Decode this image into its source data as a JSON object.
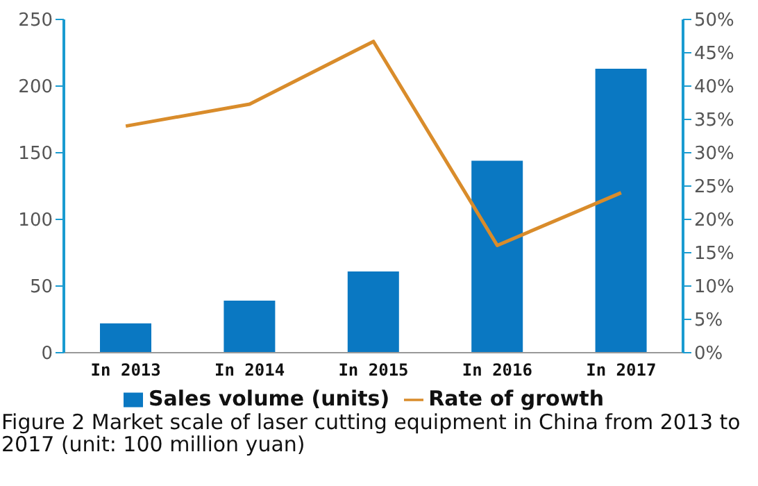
{
  "chart_data": {
    "type": "bar",
    "categories": [
      "In 2013",
      "In 2014",
      "In 2015",
      "In 2016",
      "In 2017"
    ],
    "series": [
      {
        "name": "Sales volume (units)",
        "color": "#0a78c2",
        "values": [
          22,
          39,
          61,
          144,
          213
        ]
      },
      {
        "name": "Rate of growth",
        "type": "line",
        "axis": "y2",
        "color": "#d98c2b",
        "values": [
          34,
          37.3,
          46.7,
          16.1,
          24
        ]
      }
    ],
    "ylim": [
      0,
      250
    ],
    "yticks": [
      0,
      50,
      100,
      150,
      200,
      250
    ],
    "y2lim": [
      0,
      50
    ],
    "y2ticks": [
      {
        "value": 0,
        "label": "0%"
      },
      {
        "value": 5,
        "label": "5%"
      },
      {
        "value": 10,
        "label": "10%"
      },
      {
        "value": 15,
        "label": "15%"
      },
      {
        "value": 20,
        "label": "20%"
      },
      {
        "value": 25,
        "label": "25%"
      },
      {
        "value": 30,
        "label": "30%"
      },
      {
        "value": 35,
        "label": "35%"
      },
      {
        "value": 40,
        "label": "40%"
      },
      {
        "value": 45,
        "label": "45%"
      },
      {
        "value": 50,
        "label": "50%"
      }
    ],
    "legend": "bottom",
    "marker": "none",
    "grid": false,
    "annotations": [
      "Figure 2 Market scale of laser cutting equipment in China from 2013 to 2017 (unit: 100 million yuan)"
    ]
  }
}
